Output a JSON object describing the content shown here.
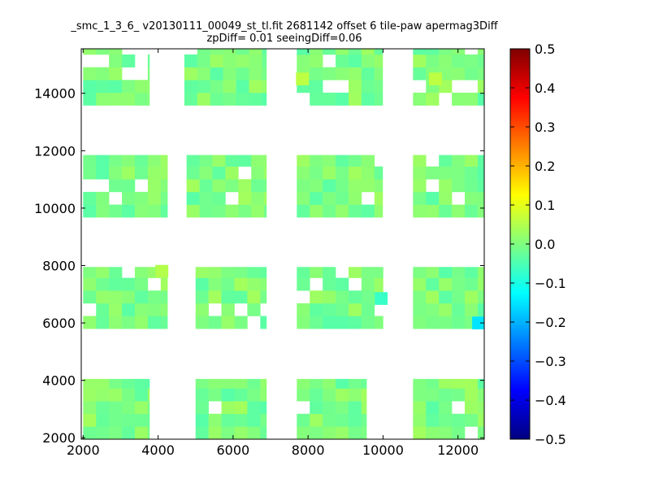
{
  "chart_data": {
    "type": "heatmap",
    "title": "_smc_1_3_6_ v20130111_00049_st_tl.fit 2681142 offset 6 tile-paw apermag3Diff",
    "subtitle": "zpDiff= 0.01 seeingDiff=0.06",
    "xlim": [
      1950,
      12700
    ],
    "ylim": [
      1950,
      15550
    ],
    "x_ticks": [
      2000,
      4000,
      6000,
      8000,
      10000,
      12000
    ],
    "y_ticks": [
      2000,
      4000,
      6000,
      8000,
      10000,
      12000,
      14000
    ],
    "colorbar": {
      "colormap": "jet",
      "range": [
        -0.5,
        0.5
      ],
      "ticks": [
        "0.5",
        "0.4",
        "0.3",
        "0.2",
        "0.1",
        "0.0",
        "−0.1",
        "−0.2",
        "−0.3",
        "−0.4",
        "−0.5"
      ]
    },
    "cell": {
      "width": 345,
      "height": 443
    },
    "value_range_observed": [
      -0.15,
      0.06
    ],
    "blocks": [
      {
        "x": [
          2000,
          3770
        ],
        "y": [
          1950,
          4050
        ]
      },
      {
        "x": [
          5000,
          6890
        ],
        "y": [
          1950,
          4050
        ]
      },
      {
        "x": [
          7700,
          9560
        ],
        "y": [
          1950,
          4050
        ]
      },
      {
        "x": [
          10800,
          12700
        ],
        "y": [
          1950,
          4050
        ]
      },
      {
        "x": [
          2000,
          4250
        ],
        "y": [
          5800,
          7950
        ]
      },
      {
        "x": [
          5000,
          6890
        ],
        "y": [
          5800,
          7950
        ]
      },
      {
        "x": [
          7700,
          10000
        ],
        "y": [
          5800,
          7950
        ]
      },
      {
        "x": [
          10800,
          12700
        ],
        "y": [
          5800,
          7950
        ]
      },
      {
        "x": [
          2000,
          4250
        ],
        "y": [
          9680,
          11850
        ]
      },
      {
        "x": [
          4760,
          6890
        ],
        "y": [
          9680,
          11850
        ]
      },
      {
        "x": [
          7700,
          9990
        ],
        "y": [
          9680,
          11850
        ]
      },
      {
        "x": [
          10800,
          12700
        ],
        "y": [
          9680,
          11850
        ]
      },
      {
        "x": [
          2000,
          3770
        ],
        "y": [
          13580,
          15550
        ]
      },
      {
        "x": [
          4700,
          6890
        ],
        "y": [
          13580,
          15550
        ]
      },
      {
        "x": [
          7700,
          9990
        ],
        "y": [
          13580,
          15550
        ]
      },
      {
        "x": [
          10800,
          12700
        ],
        "y": [
          13580,
          15550
        ]
      }
    ],
    "notable_cells": [
      {
        "x": 12550,
        "y": 6000,
        "value": -0.15
      },
      {
        "x": 9950,
        "y": 6850,
        "value": -0.07
      },
      {
        "x": 7850,
        "y": 14500,
        "value": 0.06
      },
      {
        "x": 4100,
        "y": 7800,
        "value": 0.05
      },
      {
        "x": 11400,
        "y": 14500,
        "value": 0.06
      }
    ]
  }
}
